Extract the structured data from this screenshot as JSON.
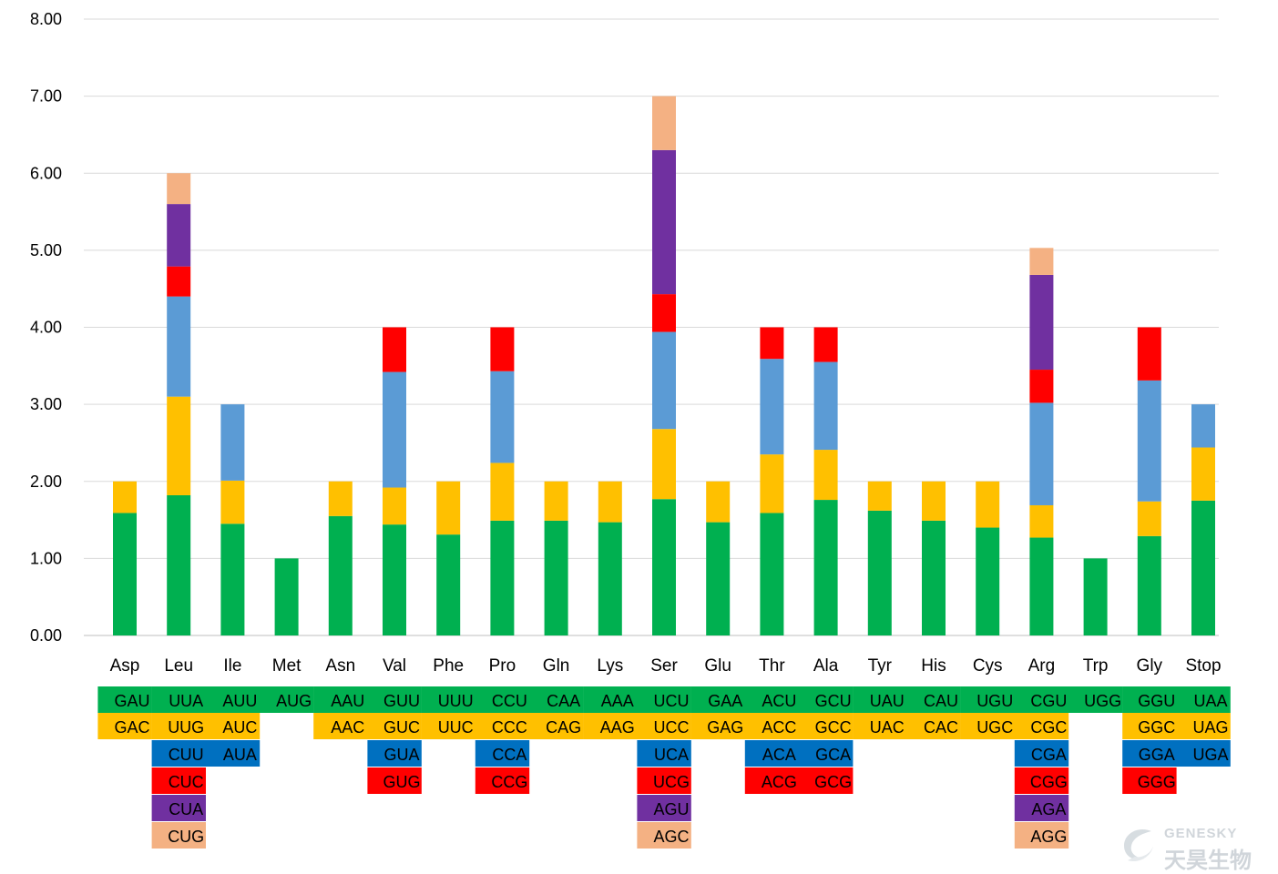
{
  "chart_data": {
    "type": "bar",
    "stacked": true,
    "ylim": [
      0,
      8
    ],
    "yticks": [
      "0.00",
      "1.00",
      "2.00",
      "3.00",
      "4.00",
      "5.00",
      "6.00",
      "7.00",
      "8.00"
    ],
    "grid": true,
    "legend": "none",
    "categories": [
      "Asp",
      "Leu",
      "Ile",
      "Met",
      "Asn",
      "Val",
      "Phe",
      "Pro",
      "Gln",
      "Lys",
      "Ser",
      "Glu",
      "Thr",
      "Ala",
      "Tyr",
      "His",
      "Cys",
      "Arg",
      "Trp",
      "Gly",
      "Stop"
    ],
    "series": [
      {
        "color": "#00B050",
        "values": [
          1.59,
          1.82,
          1.45,
          1.0,
          1.55,
          1.44,
          1.31,
          1.49,
          1.49,
          1.47,
          1.77,
          1.47,
          1.59,
          1.76,
          1.62,
          1.49,
          1.4,
          1.27,
          1.0,
          1.29,
          1.75
        ]
      },
      {
        "color": "#FFC000",
        "values": [
          0.41,
          1.28,
          0.56,
          0,
          0.45,
          0.48,
          0.69,
          0.75,
          0.51,
          0.53,
          0.91,
          0.53,
          0.76,
          0.65,
          0.38,
          0.51,
          0.6,
          0.42,
          0,
          0.45,
          0.69
        ]
      },
      {
        "color": "#5B9BD5",
        "values": [
          0,
          1.3,
          0.99,
          0,
          0,
          1.5,
          0,
          1.19,
          0,
          0,
          1.26,
          0,
          1.24,
          1.14,
          0,
          0,
          0,
          1.33,
          0,
          1.57,
          0.56
        ]
      },
      {
        "color": "#FF0000",
        "values": [
          0,
          0.39,
          0,
          0,
          0,
          0.58,
          0,
          0.57,
          0,
          0,
          0.49,
          0,
          0.41,
          0.45,
          0,
          0,
          0,
          0.43,
          0,
          0.69,
          0
        ]
      },
      {
        "color": "#7030A0",
        "values": [
          0,
          0.81,
          0,
          0,
          0,
          0,
          0,
          0,
          0,
          0,
          1.87,
          0,
          0,
          0,
          0,
          0,
          0,
          1.23,
          0,
          0,
          0
        ]
      },
      {
        "color": "#F4B183",
        "values": [
          0,
          0.4,
          0,
          0,
          0,
          0,
          0,
          0,
          0,
          0,
          0.7,
          0,
          0,
          0,
          0,
          0,
          0,
          0.35,
          0,
          0,
          0
        ]
      }
    ],
    "codon_table": {
      "row_colors": [
        "#00B050",
        "#FFC000",
        "#0070C0",
        "#FF0000",
        "#7030A0",
        "#F4B183"
      ],
      "columns": [
        [
          "GAU",
          "GAC",
          "",
          "",
          "",
          ""
        ],
        [
          "UUA",
          "UUG",
          "CUU",
          "CUC",
          "CUA",
          "CUG"
        ],
        [
          "AUU",
          "AUC",
          "AUA",
          "",
          "",
          ""
        ],
        [
          "AUG",
          "",
          "",
          "",
          "",
          ""
        ],
        [
          "AAU",
          "AAC",
          "",
          "",
          "",
          ""
        ],
        [
          "GUU",
          "GUC",
          "GUA",
          "GUG",
          "",
          ""
        ],
        [
          "UUU",
          "UUC",
          "",
          "",
          "",
          ""
        ],
        [
          "CCU",
          "CCC",
          "CCA",
          "CCG",
          "",
          ""
        ],
        [
          "CAA",
          "CAG",
          "",
          "",
          "",
          ""
        ],
        [
          "AAA",
          "AAG",
          "",
          "",
          "",
          ""
        ],
        [
          "UCU",
          "UCC",
          "UCA",
          "UCG",
          "AGU",
          "AGC"
        ],
        [
          "GAA",
          "GAG",
          "",
          "",
          "",
          ""
        ],
        [
          "ACU",
          "ACC",
          "ACA",
          "ACG",
          "",
          ""
        ],
        [
          "GCU",
          "GCC",
          "GCA",
          "GCG",
          "",
          ""
        ],
        [
          "UAU",
          "UAC",
          "",
          "",
          "",
          ""
        ],
        [
          "CAU",
          "CAC",
          "",
          "",
          "",
          ""
        ],
        [
          "UGU",
          "UGC",
          "",
          "",
          "",
          ""
        ],
        [
          "CGU",
          "CGC",
          "CGA",
          "CGG",
          "AGA",
          "AGG"
        ],
        [
          "UGG",
          "",
          "",
          "",
          "",
          ""
        ],
        [
          "GGU",
          "GGC",
          "GGA",
          "GGG",
          "",
          ""
        ],
        [
          "UAA",
          "UAG",
          "UGA",
          "",
          "",
          ""
        ]
      ]
    }
  },
  "watermark": {
    "en": "GENESKY",
    "cn": "天昊生物"
  }
}
